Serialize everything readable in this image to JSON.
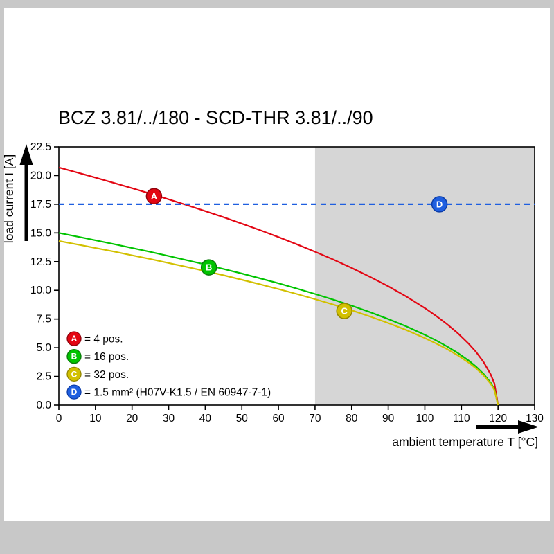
{
  "page": {
    "background": "#c8c8c8",
    "panel_background": "#ffffff"
  },
  "chart_data": {
    "type": "line",
    "title": "BCZ 3.81/../180 - SCD-THR 3.81/../90",
    "xlabel": "ambient temperature T [°C]",
    "ylabel": "load current I [A]",
    "xlim": [
      0,
      130
    ],
    "ylim": [
      0,
      22.5
    ],
    "x_ticks": [
      0,
      10,
      20,
      30,
      40,
      50,
      60,
      70,
      80,
      90,
      100,
      110,
      120,
      130
    ],
    "y_ticks": [
      0,
      2.5,
      5,
      7.5,
      10,
      12.5,
      15,
      17.5,
      20,
      22.5
    ],
    "grid": false,
    "legend_position": "inside bottom-left",
    "shaded_region": {
      "x_start": 70,
      "x_end": 130,
      "color": "#d6d6d6"
    },
    "series": [
      {
        "id": "A",
        "legend_label": "= 4 pos.",
        "color": "#e30613",
        "edge": "#8f040d",
        "line_style": "solid",
        "marker_at": {
          "x": 26,
          "y": 18.2
        },
        "points": [
          [
            0,
            20.7
          ],
          [
            5,
            20.26
          ],
          [
            10,
            19.82
          ],
          [
            15,
            19.36
          ],
          [
            20,
            18.9
          ],
          [
            25,
            18.42
          ],
          [
            30,
            17.93
          ],
          [
            35,
            17.42
          ],
          [
            40,
            16.9
          ],
          [
            45,
            16.37
          ],
          [
            50,
            15.81
          ],
          [
            55,
            15.24
          ],
          [
            60,
            14.64
          ],
          [
            65,
            14.01
          ],
          [
            70,
            13.36
          ],
          [
            75,
            12.68
          ],
          [
            80,
            11.95
          ],
          [
            85,
            11.18
          ],
          [
            90,
            10.35
          ],
          [
            95,
            9.45
          ],
          [
            100,
            8.45
          ],
          [
            103,
            7.79
          ],
          [
            106,
            7.07
          ],
          [
            109,
            6.27
          ],
          [
            112,
            5.34
          ],
          [
            114,
            4.63
          ],
          [
            116,
            3.78
          ],
          [
            118,
            2.67
          ],
          [
            119,
            1.89
          ],
          [
            120,
            0
          ]
        ]
      },
      {
        "id": "B",
        "legend_label": "= 16 pos.",
        "color": "#00c400",
        "edge": "#0a7a0a",
        "line_style": "solid",
        "marker_at": {
          "x": 41,
          "y": 12.0
        },
        "points": [
          [
            0,
            15
          ],
          [
            5,
            14.68
          ],
          [
            10,
            14.36
          ],
          [
            15,
            14.03
          ],
          [
            20,
            13.69
          ],
          [
            25,
            13.35
          ],
          [
            30,
            12.99
          ],
          [
            35,
            12.62
          ],
          [
            40,
            12.25
          ],
          [
            45,
            11.86
          ],
          [
            50,
            11.46
          ],
          [
            55,
            11.04
          ],
          [
            60,
            10.61
          ],
          [
            65,
            10.15
          ],
          [
            70,
            9.68
          ],
          [
            75,
            9.19
          ],
          [
            80,
            8.66
          ],
          [
            85,
            8.1
          ],
          [
            90,
            7.5
          ],
          [
            95,
            6.85
          ],
          [
            100,
            6.12
          ],
          [
            103,
            5.65
          ],
          [
            106,
            5.12
          ],
          [
            109,
            4.54
          ],
          [
            112,
            3.87
          ],
          [
            114,
            3.35
          ],
          [
            116,
            2.74
          ],
          [
            118,
            1.94
          ],
          [
            119,
            1.37
          ],
          [
            120,
            0
          ]
        ]
      },
      {
        "id": "C",
        "legend_label": "= 32 pos.",
        "color": "#d2c000",
        "edge": "#938700",
        "line_style": "solid",
        "marker_at": {
          "x": 78,
          "y": 8.2
        },
        "points": [
          [
            0,
            14.3
          ],
          [
            5,
            14
          ],
          [
            10,
            13.69
          ],
          [
            15,
            13.38
          ],
          [
            20,
            13.05
          ],
          [
            25,
            12.72
          ],
          [
            30,
            12.38
          ],
          [
            35,
            12.03
          ],
          [
            40,
            11.68
          ],
          [
            45,
            11.31
          ],
          [
            50,
            10.92
          ],
          [
            55,
            10.52
          ],
          [
            60,
            10.11
          ],
          [
            65,
            9.68
          ],
          [
            70,
            9.23
          ],
          [
            75,
            8.76
          ],
          [
            80,
            8.26
          ],
          [
            85,
            7.72
          ],
          [
            90,
            7.15
          ],
          [
            95,
            6.53
          ],
          [
            100,
            5.84
          ],
          [
            103,
            5.38
          ],
          [
            106,
            4.89
          ],
          [
            109,
            4.33
          ],
          [
            112,
            3.69
          ],
          [
            114,
            3.2
          ],
          [
            116,
            2.61
          ],
          [
            118,
            1.85
          ],
          [
            119,
            1.31
          ],
          [
            120,
            0
          ]
        ]
      },
      {
        "id": "D",
        "legend_label": "= 1.5 mm² (H07V-K1.5 / EN 60947-7-1)",
        "color": "#1f5fe0",
        "edge": "#0d3da8",
        "line_style": "dashed",
        "marker_at": {
          "x": 104,
          "y": 17.5
        },
        "points": [
          [
            0,
            17.5
          ],
          [
            130,
            17.5
          ]
        ]
      }
    ]
  }
}
